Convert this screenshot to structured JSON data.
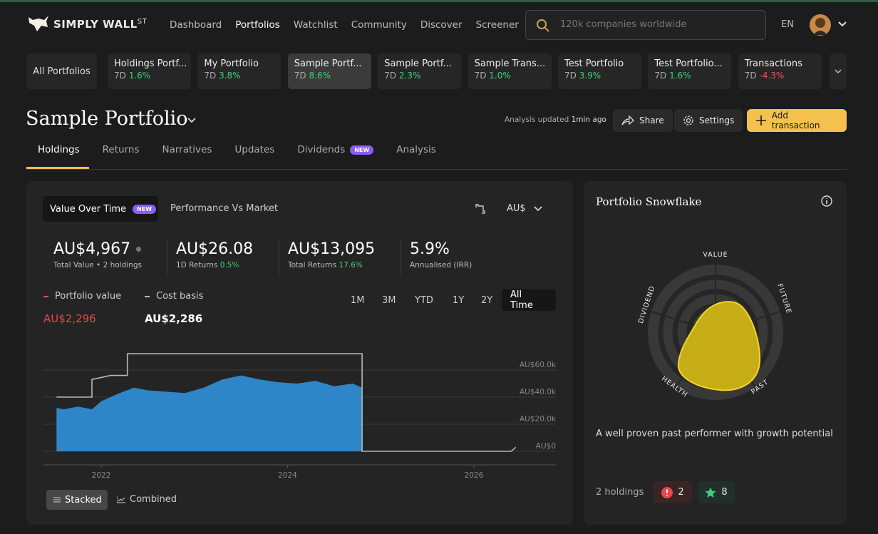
{
  "nav": {
    "logo": "SIMPLY WALL",
    "logo_sup": "ST",
    "links": [
      "Dashboard",
      "Portfolios",
      "Watchlist",
      "Community",
      "Discover",
      "Screener"
    ],
    "search_placeholder": "120k companies worldwide",
    "language": "EN"
  },
  "portfolio_tabs": {
    "all": "All Portfolios",
    "items": [
      {
        "name": "Holdings Portf...",
        "period": "7D",
        "change": "1.6%"
      },
      {
        "name": "My Portfolio",
        "period": "7D",
        "change": "3.8%"
      },
      {
        "name": "Sample Portf...",
        "period": "7D",
        "change": "8.6%"
      },
      {
        "name": "Sample Portf...",
        "period": "7D",
        "change": "2.3%"
      },
      {
        "name": "Sample Trans...",
        "period": "7D",
        "change": "1.0%"
      },
      {
        "name": "Test Portfolio",
        "period": "7D",
        "change": "3.9%"
      },
      {
        "name": "Test Portfolio...",
        "period": "7D",
        "change": "1.6%"
      },
      {
        "name": "Transactions",
        "period": "7D",
        "change": "-4.3%"
      }
    ]
  },
  "header": {
    "title": "Sample Portfolio",
    "updated_label": "Analysis updated",
    "updated_time": "1min ago",
    "share": "Share",
    "settings": "Settings",
    "add": "Add transaction"
  },
  "tabs": {
    "items": [
      "Holdings",
      "Returns",
      "Narratives",
      "Updates",
      "Dividends",
      "Analysis"
    ],
    "new_badge": "NEW"
  },
  "value_card": {
    "tab_active": "Value Over Time",
    "badge": "NEW",
    "tab_other": "Performance Vs Market",
    "currency": "AU$",
    "stats": [
      {
        "value": "AU$4,967",
        "label": "Total Value • 2 holdings"
      },
      {
        "value": "AU$26.08",
        "label": "1D Returns",
        "change": "0.5%"
      },
      {
        "value": "AU$13,095",
        "label": "Total Returns",
        "change": "17.6%"
      },
      {
        "value": "5.9%",
        "label": "Annualised (IRR)"
      }
    ],
    "ranges": [
      "1M",
      "3M",
      "YTD",
      "1Y",
      "2Y",
      "All Time"
    ],
    "view_stacked": "Stacked",
    "view_combined": "Combined"
  },
  "value_chart": {
    "type": "area",
    "xlim": [
      2021.38,
      2026.88
    ],
    "xticks": [
      2022,
      2024,
      2026
    ],
    "ylim": [
      0,
      75000
    ],
    "yticks": [
      {
        "value": 0,
        "label": "AU$0"
      },
      {
        "value": 20000,
        "label": "AU$20.0k"
      },
      {
        "value": 40000,
        "label": "AU$40.0k"
      },
      {
        "value": 60000,
        "label": "AU$60.0k"
      }
    ],
    "grid": true,
    "series": [
      {
        "name": "Portfolio value",
        "current": "AU$2,296",
        "color": "#2e86c8",
        "legend_color": "#e5484d",
        "x": [
          2021.52,
          2021.6,
          2021.75,
          2021.9,
          2022.0,
          2022.1,
          2022.2,
          2022.35,
          2022.5,
          2022.7,
          2022.9,
          2023.1,
          2023.3,
          2023.5,
          2023.7,
          2023.9,
          2024.1,
          2024.3,
          2024.5,
          2024.7,
          2024.8
        ],
        "values": [
          32000,
          31000,
          33000,
          31000,
          37000,
          40000,
          43000,
          47000,
          45000,
          44000,
          43000,
          47000,
          53000,
          56000,
          53000,
          51000,
          50000,
          52000,
          48000,
          50000,
          47000
        ]
      },
      {
        "name": "Cost basis",
        "current": "AU$2,286",
        "color": "#b8b8b8",
        "legend_color": "#b8b8b8",
        "x": [
          2021.52,
          2021.9,
          2021.9,
          2022.1,
          2022.28,
          2022.28,
          2024.8,
          2024.8,
          2026.4,
          2026.45
        ],
        "values": [
          40000,
          40000,
          53000,
          56000,
          56000,
          72000,
          72000,
          0,
          0,
          3000
        ]
      }
    ]
  },
  "snowflake": {
    "title": "Portfolio Snowflake",
    "axes": [
      "VALUE",
      "FUTURE",
      "PAST",
      "HEALTH",
      "DIVIDEND"
    ],
    "description": "A well proven past performer with growth potential",
    "holdings": "2 holdings",
    "warnings": 2,
    "rewards": 8
  }
}
